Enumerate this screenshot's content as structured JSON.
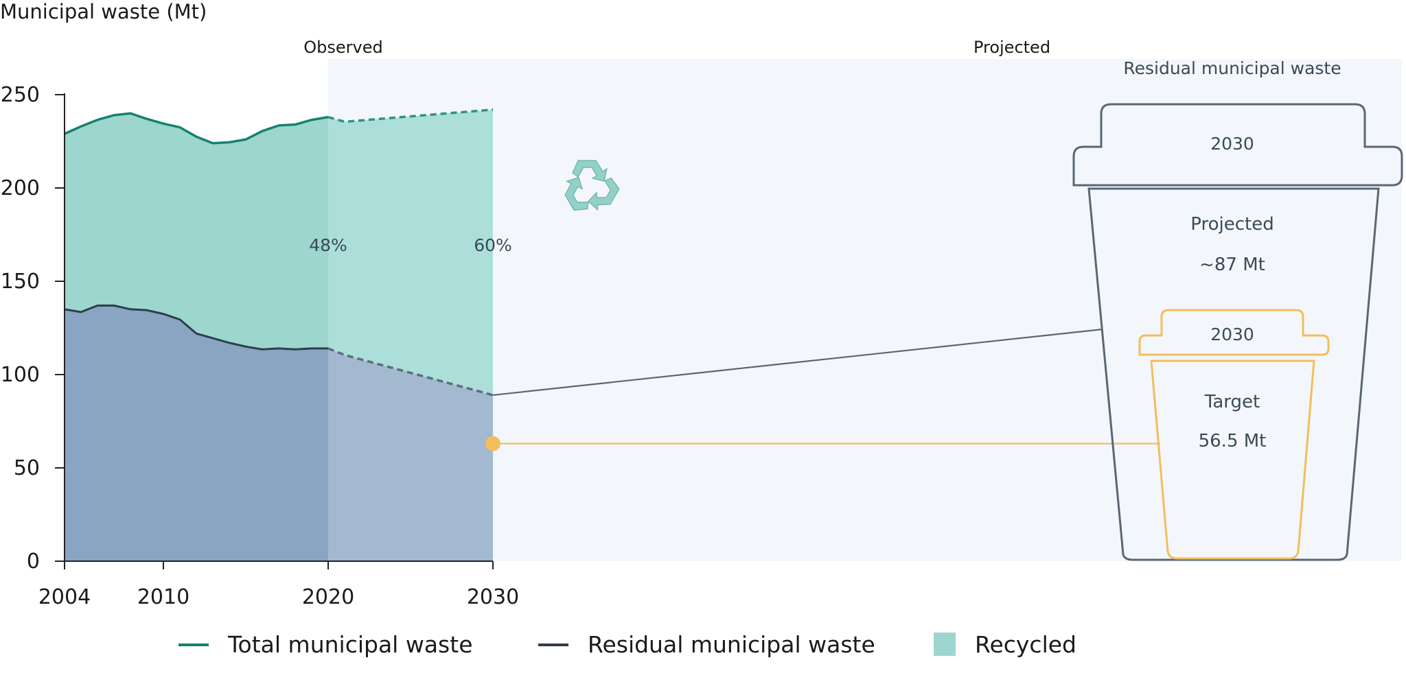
{
  "chart_data": {
    "type": "area",
    "ylabel": "Municipal waste (Mt)",
    "ylim": [
      0,
      250
    ],
    "xlim": [
      2004,
      2030
    ],
    "x_ticks": [
      2004,
      2010,
      2020,
      2030
    ],
    "y_ticks": [
      0,
      50,
      100,
      150,
      200,
      250
    ],
    "period_labels": {
      "observed": "Observed",
      "projected": "Projected"
    },
    "observed_end_year": 2020,
    "series": [
      {
        "name": "Total municipal waste",
        "color": "#14826f",
        "x": [
          2004,
          2005,
          2006,
          2007,
          2008,
          2009,
          2010,
          2011,
          2012,
          2013,
          2014,
          2015,
          2016,
          2017,
          2018,
          2019,
          2020
        ],
        "values": [
          229,
          233,
          236.5,
          239,
          240,
          237,
          234.5,
          232.5,
          227.5,
          224,
          224.5,
          226,
          230.5,
          233.5,
          234,
          236.5,
          238
        ],
        "projected_x": [
          2020,
          2021,
          2030
        ],
        "projected_values": [
          238,
          235.5,
          242
        ]
      },
      {
        "name": "Residual municipal waste",
        "color": "#2f3d4a",
        "x": [
          2004,
          2005,
          2006,
          2007,
          2008,
          2009,
          2010,
          2011,
          2012,
          2013,
          2014,
          2015,
          2016,
          2017,
          2018,
          2019,
          2020
        ],
        "values": [
          135,
          133.5,
          137,
          137,
          135,
          134.5,
          132.5,
          129.5,
          122,
          119.5,
          117,
          115,
          113.5,
          114,
          113.5,
          114,
          114
        ],
        "projected_x": [
          2020,
          2021,
          2030
        ],
        "projected_values": [
          114,
          110.5,
          89
        ]
      }
    ],
    "recycled_legend": "Recycled",
    "recycled_shares": [
      {
        "year": 2020,
        "label": "48%"
      },
      {
        "year": 2030,
        "label": "60%"
      }
    ],
    "target_point": {
      "year": 2030,
      "value": 63
    },
    "colors": {
      "recycled_observed": "#9cd6cf",
      "recycled_projected": "#acdfd9",
      "residual_observed": "#89a5c3",
      "residual_projected": "#a2b9d0",
      "projected_background": "#f3f7fb",
      "target": "#f2be5b",
      "bin_stroke": "#5a6673"
    }
  },
  "side_panel": {
    "title": "Residual municipal waste",
    "projected_bin": {
      "year": "2030",
      "label": "Projected",
      "value": "~87 Mt"
    },
    "target_bin": {
      "year": "2030",
      "label": "Target",
      "value": "56.5 Mt"
    }
  }
}
